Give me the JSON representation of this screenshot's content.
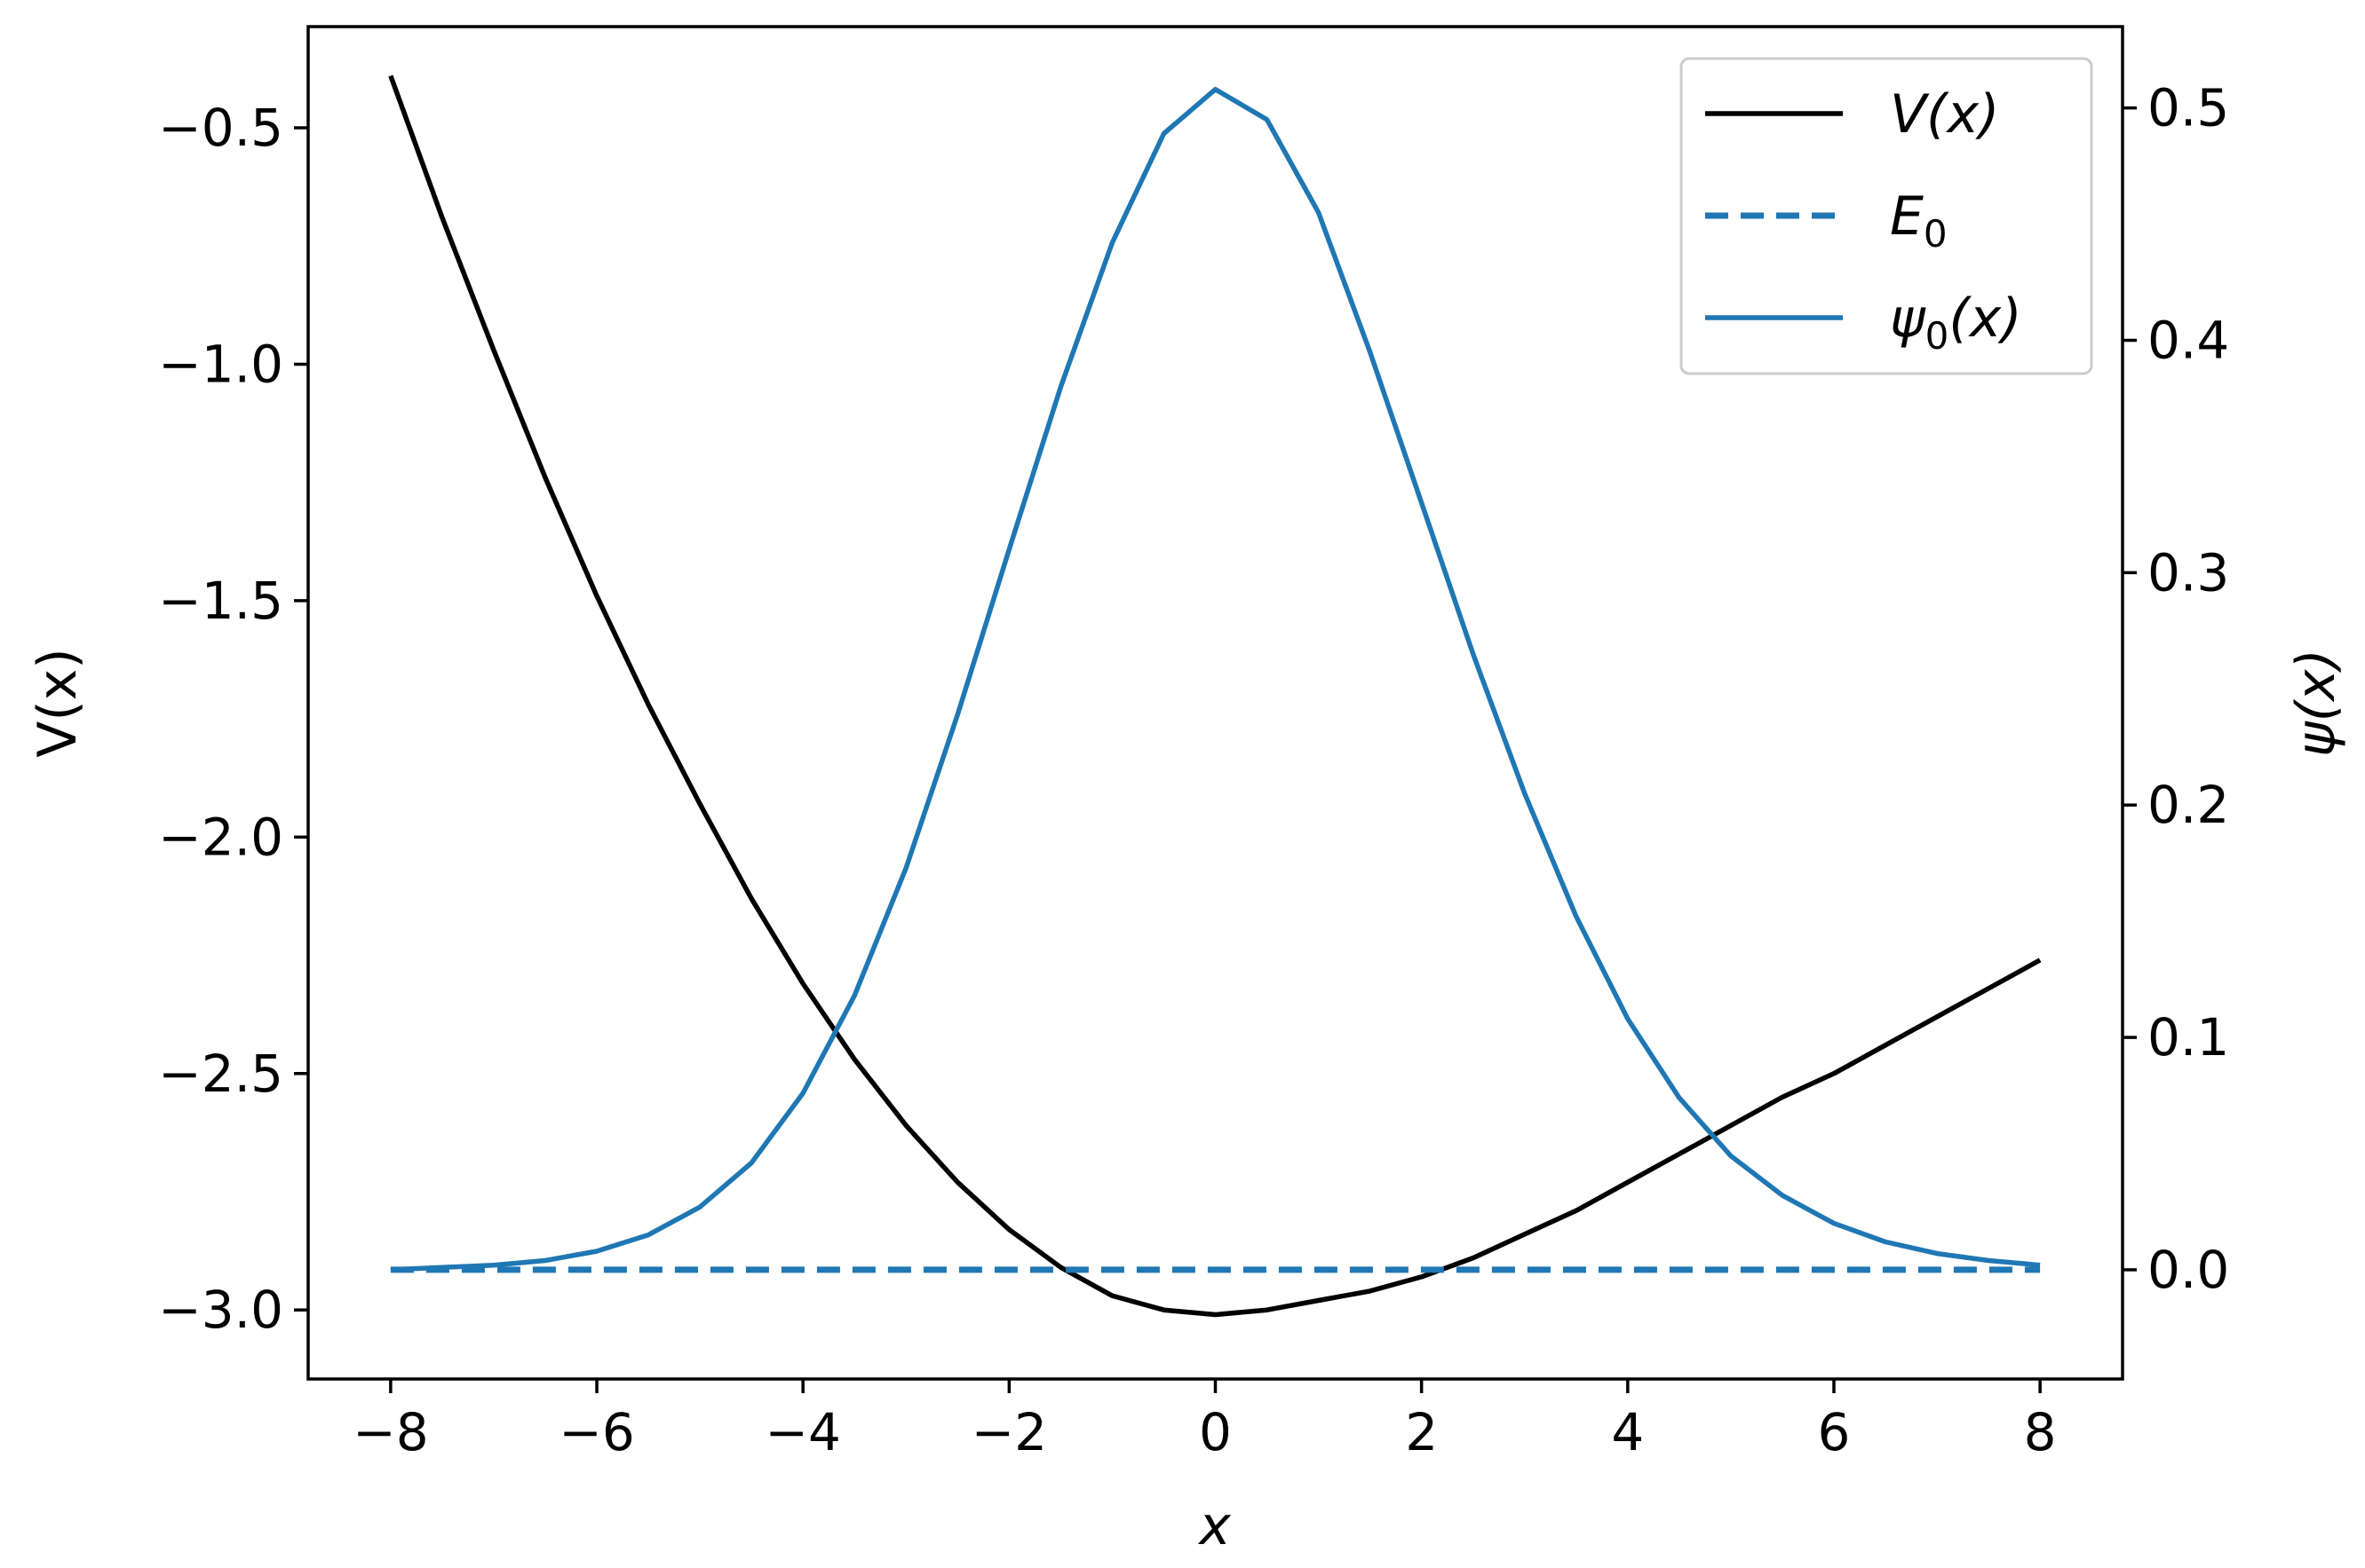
{
  "chart_data": {
    "type": "line",
    "x_axis": {
      "label": "x",
      "range": [
        -8.8,
        8.8
      ],
      "ticks": [
        -8,
        -6,
        -4,
        -2,
        0,
        2,
        4,
        6,
        8
      ],
      "tick_labels": [
        "−8",
        "−6",
        "−4",
        "−2",
        "0",
        "2",
        "4",
        "6",
        "8"
      ]
    },
    "y_axis_left": {
      "label": "V(x)",
      "range": [
        -3.146,
        -0.286
      ],
      "ticks": [
        -0.5,
        -1.0,
        -1.5,
        -2.0,
        -2.5,
        -3.0
      ],
      "tick_labels": [
        "−0.5",
        "−1.0",
        "−1.5",
        "−2.0",
        "−2.5",
        "−3.0"
      ]
    },
    "y_axis_right": {
      "label": "ψ(x)",
      "range": [
        -0.047,
        0.535
      ],
      "ticks": [
        0.0,
        0.1,
        0.2,
        0.3,
        0.4,
        0.5
      ],
      "tick_labels": [
        "0.0",
        "0.1",
        "0.2",
        "0.3",
        "0.4",
        "0.5"
      ]
    },
    "grid": false,
    "legend_placement": "top-right",
    "series": [
      {
        "name": "V(x)",
        "legend_main": "V",
        "legend_sub": "",
        "legend_suffix": "(x)",
        "axis": "left",
        "color": "#000000",
        "dash": "solid",
        "x": [
          -8,
          -7.5,
          -7,
          -6.5,
          -6,
          -5.5,
          -5,
          -4.5,
          -4,
          -3.5,
          -3,
          -2.5,
          -2,
          -1.5,
          -1,
          -0.5,
          0,
          0.5,
          1,
          1.5,
          2,
          2.5,
          3,
          3.5,
          4,
          4.5,
          5,
          5.5,
          6,
          6.5,
          7,
          7.5,
          8
        ],
        "y": [
          -0.39,
          -0.69,
          -0.97,
          -1.24,
          -1.49,
          -1.72,
          -1.93,
          -2.13,
          -2.31,
          -2.47,
          -2.61,
          -2.73,
          -2.83,
          -2.91,
          -2.97,
          -3.0,
          -3.01,
          -3.0,
          -2.98,
          -2.96,
          -2.93,
          -2.89,
          -2.84,
          -2.79,
          -2.73,
          -2.67,
          -2.61,
          -2.55,
          -2.5,
          -2.44,
          -2.38,
          -2.32,
          -2.26
        ]
      },
      {
        "name": "E0",
        "legend_main": "E",
        "legend_sub": "0",
        "legend_suffix": "",
        "axis": "right",
        "color": "#1f77b4",
        "dash": "dashed",
        "x": [
          -8,
          8
        ],
        "y": [
          0.0,
          0.0
        ]
      },
      {
        "name": "ψ0(x)",
        "legend_main": "ψ",
        "legend_sub": "0",
        "legend_suffix": "(x)",
        "axis": "right",
        "color": "#1f77b4",
        "dash": "solid",
        "x": [
          -8,
          -7.5,
          -7,
          -6.5,
          -6,
          -5.5,
          -5,
          -4.5,
          -4,
          -3.5,
          -3,
          -2.5,
          -2,
          -1.5,
          -1,
          -0.5,
          0,
          0.5,
          1,
          1.5,
          2,
          2.5,
          3,
          3.5,
          4,
          4.5,
          5,
          5.5,
          6,
          6.5,
          7,
          7.5,
          8
        ],
        "y": [
          0.0,
          0.001,
          0.002,
          0.004,
          0.008,
          0.015,
          0.027,
          0.046,
          0.076,
          0.118,
          0.173,
          0.239,
          0.31,
          0.38,
          0.442,
          0.489,
          0.508,
          0.495,
          0.455,
          0.395,
          0.33,
          0.265,
          0.205,
          0.152,
          0.108,
          0.074,
          0.049,
          0.032,
          0.02,
          0.012,
          0.007,
          0.004,
          0.002
        ]
      }
    ]
  }
}
